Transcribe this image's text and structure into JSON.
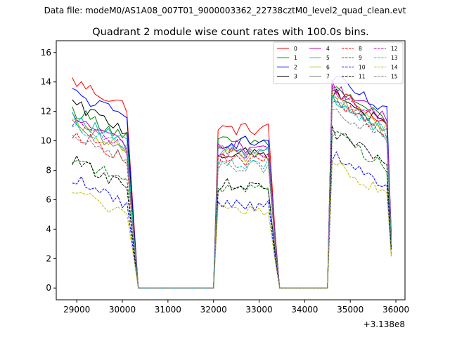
{
  "chart_data": {
    "type": "line",
    "suptitle": "Data file: modeM0/AS1A08_007T01_9000003362_22738cztM0_level2_quad_clean.evt",
    "title": "Quadrant 2 module wise count rates with 100.0s bins.",
    "xlabel": "",
    "ylabel": "",
    "x_offset_label": "+3.138e8",
    "xlim": [
      28550,
      36200
    ],
    "ylim": [
      -0.8,
      16.8
    ],
    "xticks": [
      29000,
      30000,
      31000,
      32000,
      33000,
      34000,
      35000,
      36000
    ],
    "yticks": [
      0,
      2,
      4,
      6,
      8,
      10,
      12,
      14,
      16
    ],
    "legend_position": "top-right",
    "legend_columns": 4,
    "segments": [
      {
        "start": 28900,
        "end": 30100
      },
      {
        "start": 32100,
        "end": 33200
      },
      {
        "start": 34600,
        "end": 35800
      }
    ],
    "series": [
      {
        "name": "0",
        "color": "#ff0000",
        "dash": false,
        "levels": [
          13.2,
          10.8,
          12.3
        ]
      },
      {
        "name": "1",
        "color": "#008000",
        "dash": false,
        "levels": [
          11.2,
          9.9,
          12.5
        ]
      },
      {
        "name": "2",
        "color": "#0000ff",
        "dash": false,
        "levels": [
          12.4,
          9.9,
          13.1
        ]
      },
      {
        "name": "3",
        "color": "#000000",
        "dash": false,
        "levels": [
          11.6,
          9.1,
          12.1
        ]
      },
      {
        "name": "4",
        "color": "#bf00bf",
        "dash": false,
        "levels": [
          10.7,
          9.6,
          12.6
        ]
      },
      {
        "name": "5",
        "color": "#00bfbf",
        "dash": false,
        "levels": [
          10.7,
          9.3,
          11.7
        ]
      },
      {
        "name": "6",
        "color": "#bfbf00",
        "dash": false,
        "levels": [
          10.2,
          9.0,
          12.0
        ]
      },
      {
        "name": "7",
        "color": "#808080",
        "dash": false,
        "levels": [
          10.1,
          9.4,
          11.9
        ]
      },
      {
        "name": "8",
        "color": "#ff0000",
        "dash": true,
        "levels": [
          9.7,
          8.7,
          11.6
        ]
      },
      {
        "name": "9",
        "color": "#008000",
        "dash": true,
        "levels": [
          8.0,
          6.9,
          9.4
        ]
      },
      {
        "name": "10",
        "color": "#0000ff",
        "dash": true,
        "levels": [
          6.6,
          5.7,
          7.9
        ]
      },
      {
        "name": "11",
        "color": "#000000",
        "dash": true,
        "levels": [
          7.8,
          7.0,
          9.5
        ]
      },
      {
        "name": "12",
        "color": "#bf00bf",
        "dash": true,
        "levels": [
          10.4,
          9.1,
          12.4
        ]
      },
      {
        "name": "13",
        "color": "#00bfbf",
        "dash": true,
        "levels": [
          10.3,
          8.4,
          11.8
        ]
      },
      {
        "name": "14",
        "color": "#bfbf00",
        "dash": true,
        "levels": [
          5.8,
          5.3,
          7.4
        ]
      },
      {
        "name": "15",
        "color": "#808080",
        "dash": true,
        "levels": [
          9.7,
          8.2,
          11.1
        ]
      }
    ]
  }
}
